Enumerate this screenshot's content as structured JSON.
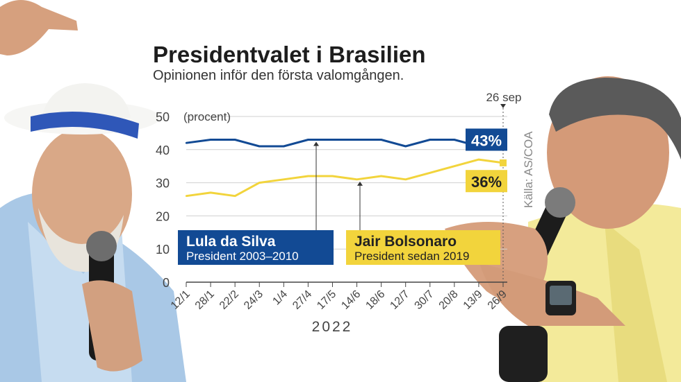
{
  "chart_data": {
    "type": "line",
    "title": "Presidentvalet i Brasilien",
    "subtitle": "Opinionen inför den första valomgången.",
    "unit_label": "(procent)",
    "source": "Källa: AS/COA",
    "year_label": "2022",
    "end_date_label": "26 sep",
    "ylim": [
      0,
      50
    ],
    "yticks": [
      "0",
      "10",
      "20",
      "30",
      "40",
      "50"
    ],
    "x": [
      "12/1",
      "28/1",
      "22/2",
      "24/3",
      "1/4",
      "27/4",
      "17/5",
      "14/6",
      "18/6",
      "12/7",
      "30/7",
      "20/8",
      "13/9",
      "26/9"
    ],
    "grid": true,
    "series": [
      {
        "name": "Lula da Silva",
        "description": "President 2003–2010",
        "color": "#124a94",
        "values": [
          42,
          43,
          43,
          41,
          41,
          43,
          43,
          43,
          43,
          41,
          43,
          43,
          41,
          43
        ],
        "end_label": "43%"
      },
      {
        "name": "Jair Bolsonaro",
        "description": "President sedan 2019",
        "color": "#f2d43c",
        "values": [
          26,
          27,
          26,
          30,
          31,
          32,
          32,
          31,
          32,
          31,
          33,
          35,
          37,
          36
        ],
        "end_label": "36%"
      }
    ]
  }
}
